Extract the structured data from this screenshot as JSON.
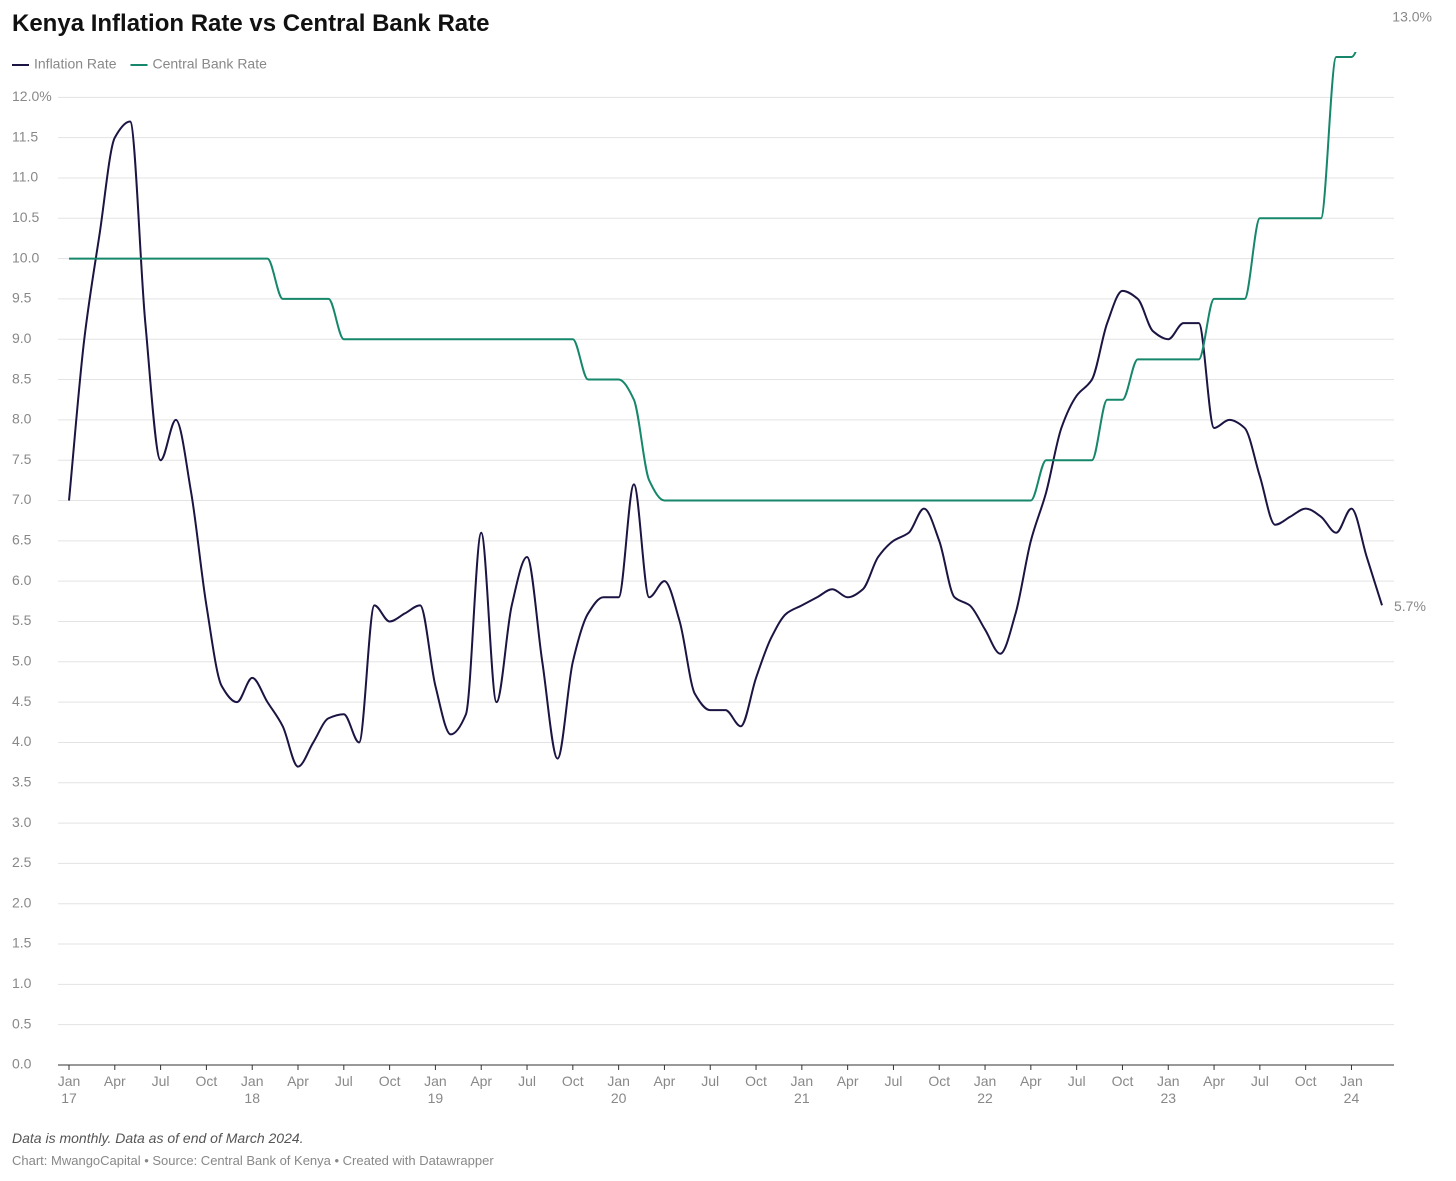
{
  "chart_data": {
    "type": "line",
    "title": "Kenya Inflation Rate vs Central Bank Rate",
    "note": "Data is monthly. Data as of end of March 2024.",
    "source": "Chart: MwangoCapital • Source: Central Bank of Kenya • Created with Datawrapper",
    "legend": "top-left",
    "grid": true,
    "categories": [
      "Jan 17",
      null,
      null,
      "Apr",
      null,
      null,
      "Jul",
      null,
      null,
      "Oct",
      null,
      null,
      "Jan 18",
      null,
      null,
      "Apr",
      null,
      null,
      "Jul",
      null,
      null,
      "Oct",
      null,
      null,
      "Jan 19",
      null,
      null,
      "Apr",
      null,
      null,
      "Jul",
      null,
      null,
      "Oct",
      null,
      null,
      "Jan 20",
      null,
      null,
      "Apr",
      null,
      null,
      "Jul",
      null,
      null,
      "Oct",
      null,
      null,
      "Jan 21",
      null,
      null,
      "Apr",
      null,
      null,
      "Jul",
      null,
      null,
      "Oct",
      null,
      null,
      "Jan 22",
      null,
      null,
      "Apr",
      null,
      null,
      "Jul",
      null,
      null,
      "Oct",
      null,
      null,
      "Jan 23",
      null,
      null,
      "Apr",
      null,
      null,
      "Jul",
      null,
      null,
      "Oct",
      null,
      null,
      "Jan 24",
      null,
      null
    ],
    "ylim": [
      0,
      12.5
    ],
    "yticks": [
      {
        "value": 0,
        "label": "0.0"
      },
      0.5,
      {
        "value": 1,
        "label": "1.0"
      },
      1.5,
      {
        "value": 2,
        "label": "2.0"
      },
      2.5,
      {
        "value": 3,
        "label": "3.0"
      },
      3.5,
      {
        "value": 4,
        "label": "4.0"
      },
      4.5,
      {
        "value": 5,
        "label": "5.0"
      },
      5.5,
      {
        "value": 6,
        "label": "6.0"
      },
      6.5,
      {
        "value": 7,
        "label": "7.0"
      },
      7.5,
      {
        "value": 8,
        "label": "8.0"
      },
      8.5,
      {
        "value": 9,
        "label": "9.0"
      },
      9.5,
      {
        "value": 10,
        "label": "10.0"
      },
      10.5,
      {
        "value": 11,
        "label": "11.0"
      },
      11.5,
      {
        "value": 12,
        "label": "12.0%"
      }
    ],
    "series": [
      {
        "name": "Inflation Rate",
        "color": "#1c1442",
        "values": [
          7.0,
          9.0,
          10.3,
          11.5,
          11.7,
          9.2,
          7.5,
          8.0,
          7.1,
          5.7,
          4.7,
          4.5,
          4.8,
          4.5,
          4.2,
          3.7,
          4.0,
          4.3,
          4.35,
          4.0,
          5.7,
          5.5,
          5.6,
          5.7,
          4.7,
          4.1,
          4.35,
          6.6,
          4.5,
          5.7,
          6.3,
          5.0,
          3.8,
          5.0,
          5.6,
          5.8,
          5.8,
          7.2,
          5.8,
          6.0,
          5.5,
          4.6,
          4.4,
          4.4,
          4.2,
          4.8,
          5.3,
          5.6,
          5.7,
          5.8,
          5.9,
          5.8,
          5.9,
          6.3,
          6.5,
          6.6,
          6.9,
          6.5,
          5.8,
          5.7,
          5.4,
          5.1,
          5.6,
          6.5,
          7.1,
          7.9,
          8.3,
          8.5,
          9.2,
          9.6,
          9.5,
          9.1,
          9.0,
          9.2,
          9.2,
          7.9,
          8.0,
          7.9,
          7.3,
          6.7,
          6.8,
          6.9,
          6.8,
          6.6,
          6.9,
          6.3,
          5.7
        ],
        "value_labels": [
          null,
          null,
          null,
          null,
          null,
          null,
          null,
          null,
          null,
          null,
          null,
          null,
          null,
          null,
          null,
          null,
          null,
          null,
          null,
          null,
          null,
          null,
          null,
          null,
          null,
          null,
          null,
          null,
          null,
          null,
          null,
          null,
          null,
          null,
          null,
          null,
          null,
          null,
          null,
          null,
          null,
          null,
          null,
          null,
          null,
          null,
          null,
          null,
          null,
          null,
          null,
          null,
          null,
          null,
          null,
          null,
          null,
          null,
          null,
          null,
          null,
          null,
          null,
          null,
          null,
          null,
          null,
          null,
          null,
          null,
          null,
          null,
          null,
          null,
          null,
          null,
          null,
          null,
          null,
          null,
          null,
          null,
          null,
          null,
          null,
          null,
          "5.7%"
        ]
      },
      {
        "name": "Central Bank Rate",
        "color": "#16876b",
        "values": [
          10,
          10,
          10,
          10,
          10,
          10,
          10,
          10,
          10,
          10,
          10,
          10,
          10,
          10,
          9.5,
          9.5,
          9.5,
          9.5,
          9.0,
          9.0,
          9.0,
          9.0,
          9.0,
          9.0,
          9.0,
          9.0,
          9.0,
          9.0,
          9.0,
          9.0,
          9.0,
          9.0,
          9.0,
          9.0,
          8.5,
          8.5,
          8.5,
          8.25,
          7.25,
          7.0,
          7.0,
          7.0,
          7.0,
          7.0,
          7.0,
          7.0,
          7.0,
          7.0,
          7.0,
          7.0,
          7.0,
          7.0,
          7.0,
          7.0,
          7.0,
          7.0,
          7.0,
          7.0,
          7.0,
          7.0,
          7.0,
          7.0,
          7.0,
          7.0,
          7.5,
          7.5,
          7.5,
          7.5,
          8.25,
          8.25,
          8.75,
          8.75,
          8.75,
          8.75,
          8.75,
          9.5,
          9.5,
          9.5,
          10.5,
          10.5,
          10.5,
          10.5,
          10.5,
          12.5,
          12.5,
          13.0,
          null
        ],
        "value_labels": [
          null,
          null,
          null,
          null,
          null,
          null,
          null,
          null,
          null,
          null,
          null,
          null,
          null,
          null,
          null,
          null,
          null,
          null,
          null,
          null,
          null,
          null,
          null,
          null,
          null,
          null,
          null,
          null,
          null,
          null,
          null,
          null,
          null,
          null,
          null,
          null,
          null,
          null,
          null,
          null,
          null,
          null,
          null,
          null,
          null,
          null,
          null,
          null,
          null,
          null,
          null,
          null,
          null,
          null,
          null,
          null,
          null,
          null,
          null,
          null,
          null,
          null,
          null,
          null,
          null,
          null,
          null,
          null,
          null,
          null,
          null,
          null,
          null,
          null,
          null,
          null,
          null,
          null,
          null,
          null,
          null,
          null,
          null,
          null,
          null,
          "13.0%",
          null
        ]
      }
    ]
  }
}
